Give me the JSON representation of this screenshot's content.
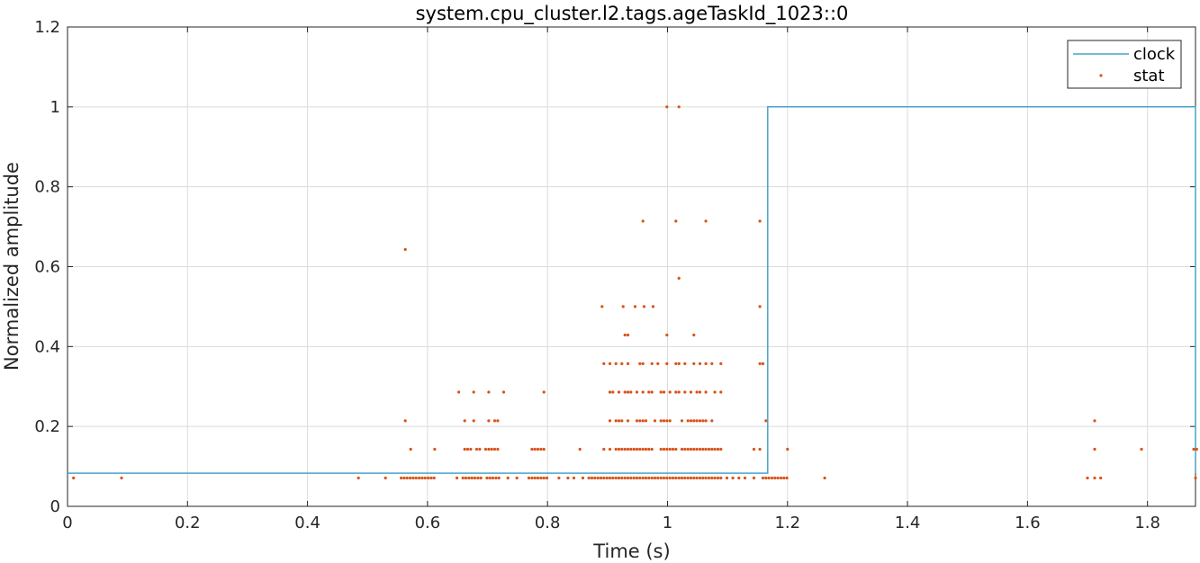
{
  "chart_data": {
    "type": "line",
    "title": "system.cpu_cluster.l2.tags.ageTaskId_1023::0",
    "xlabel": "Time (s)",
    "ylabel": "Normalized amplitude",
    "xlim": [
      0,
      1.88
    ],
    "ylim": [
      0,
      1.2
    ],
    "grid": true,
    "legend_position": "top-right",
    "x_tick_labels": [
      "0",
      "0.2",
      "0.4",
      "0.6",
      "0.8",
      "1",
      "1.2",
      "1.4",
      "1.6",
      "1.8"
    ],
    "y_tick_labels": [
      "0",
      "0.2",
      "0.4",
      "0.6",
      "0.8",
      "1",
      "1.2"
    ],
    "colors": {
      "clock": "#4aa3c8",
      "stat": "#d95319"
    },
    "series": [
      {
        "name": "clock",
        "style": "line",
        "x": [
          0,
          1.167,
          1.167,
          1.88,
          1.88
        ],
        "y": [
          0.083,
          0.083,
          1.0,
          1.0,
          0.083
        ]
      },
      {
        "name": "stat",
        "style": "points",
        "points": [
          [
            0.01,
            0.071
          ],
          [
            0.09,
            0.071
          ],
          [
            0.485,
            0.071
          ],
          [
            0.53,
            0.071
          ],
          [
            0.556,
            0.071
          ],
          [
            0.561,
            0.071
          ],
          [
            0.566,
            0.071
          ],
          [
            0.571,
            0.071
          ],
          [
            0.576,
            0.071
          ],
          [
            0.581,
            0.071
          ],
          [
            0.586,
            0.071
          ],
          [
            0.591,
            0.071
          ],
          [
            0.596,
            0.071
          ],
          [
            0.601,
            0.071
          ],
          [
            0.606,
            0.071
          ],
          [
            0.611,
            0.071
          ],
          [
            0.649,
            0.071
          ],
          [
            0.659,
            0.071
          ],
          [
            0.664,
            0.071
          ],
          [
            0.669,
            0.071
          ],
          [
            0.674,
            0.071
          ],
          [
            0.679,
            0.071
          ],
          [
            0.684,
            0.071
          ],
          [
            0.689,
            0.071
          ],
          [
            0.699,
            0.071
          ],
          [
            0.704,
            0.071
          ],
          [
            0.709,
            0.071
          ],
          [
            0.714,
            0.071
          ],
          [
            0.719,
            0.071
          ],
          [
            0.734,
            0.071
          ],
          [
            0.749,
            0.071
          ],
          [
            0.769,
            0.071
          ],
          [
            0.774,
            0.071
          ],
          [
            0.779,
            0.071
          ],
          [
            0.784,
            0.071
          ],
          [
            0.789,
            0.071
          ],
          [
            0.794,
            0.071
          ],
          [
            0.799,
            0.071
          ],
          [
            0.819,
            0.071
          ],
          [
            0.834,
            0.071
          ],
          [
            0.844,
            0.071
          ],
          [
            0.859,
            0.071
          ],
          [
            0.869,
            0.071
          ],
          [
            0.874,
            0.071
          ],
          [
            0.879,
            0.071
          ],
          [
            0.884,
            0.071
          ],
          [
            0.889,
            0.071
          ],
          [
            0.894,
            0.071
          ],
          [
            0.899,
            0.071
          ],
          [
            0.904,
            0.071
          ],
          [
            0.909,
            0.071
          ],
          [
            0.914,
            0.071
          ],
          [
            0.919,
            0.071
          ],
          [
            0.924,
            0.071
          ],
          [
            0.929,
            0.071
          ],
          [
            0.934,
            0.071
          ],
          [
            0.939,
            0.071
          ],
          [
            0.944,
            0.071
          ],
          [
            0.949,
            0.071
          ],
          [
            0.954,
            0.071
          ],
          [
            0.959,
            0.071
          ],
          [
            0.964,
            0.071
          ],
          [
            0.969,
            0.071
          ],
          [
            0.974,
            0.071
          ],
          [
            0.979,
            0.071
          ],
          [
            0.984,
            0.071
          ],
          [
            0.989,
            0.071
          ],
          [
            0.994,
            0.071
          ],
          [
            0.999,
            0.071
          ],
          [
            1.004,
            0.071
          ],
          [
            1.009,
            0.071
          ],
          [
            1.014,
            0.071
          ],
          [
            1.019,
            0.071
          ],
          [
            1.024,
            0.071
          ],
          [
            1.029,
            0.071
          ],
          [
            1.034,
            0.071
          ],
          [
            1.039,
            0.071
          ],
          [
            1.044,
            0.071
          ],
          [
            1.049,
            0.071
          ],
          [
            1.054,
            0.071
          ],
          [
            1.059,
            0.071
          ],
          [
            1.064,
            0.071
          ],
          [
            1.069,
            0.071
          ],
          [
            1.074,
            0.071
          ],
          [
            1.079,
            0.071
          ],
          [
            1.084,
            0.071
          ],
          [
            1.089,
            0.071
          ],
          [
            1.099,
            0.071
          ],
          [
            1.109,
            0.071
          ],
          [
            1.119,
            0.071
          ],
          [
            1.129,
            0.071
          ],
          [
            1.144,
            0.071
          ],
          [
            1.159,
            0.071
          ],
          [
            1.164,
            0.071
          ],
          [
            1.169,
            0.071
          ],
          [
            1.174,
            0.071
          ],
          [
            1.179,
            0.071
          ],
          [
            1.184,
            0.071
          ],
          [
            1.189,
            0.071
          ],
          [
            1.194,
            0.071
          ],
          [
            1.199,
            0.071
          ],
          [
            1.262,
            0.071
          ],
          [
            1.7,
            0.071
          ],
          [
            1.712,
            0.071
          ],
          [
            1.722,
            0.071
          ],
          [
            1.88,
            0.071
          ],
          [
            0.572,
            0.143
          ],
          [
            0.612,
            0.143
          ],
          [
            0.662,
            0.143
          ],
          [
            0.667,
            0.143
          ],
          [
            0.672,
            0.143
          ],
          [
            0.682,
            0.143
          ],
          [
            0.687,
            0.143
          ],
          [
            0.697,
            0.143
          ],
          [
            0.702,
            0.143
          ],
          [
            0.707,
            0.143
          ],
          [
            0.712,
            0.143
          ],
          [
            0.717,
            0.143
          ],
          [
            0.774,
            0.143
          ],
          [
            0.779,
            0.143
          ],
          [
            0.784,
            0.143
          ],
          [
            0.789,
            0.143
          ],
          [
            0.794,
            0.143
          ],
          [
            0.854,
            0.143
          ],
          [
            0.894,
            0.143
          ],
          [
            0.904,
            0.143
          ],
          [
            0.914,
            0.143
          ],
          [
            0.919,
            0.143
          ],
          [
            0.924,
            0.143
          ],
          [
            0.929,
            0.143
          ],
          [
            0.934,
            0.143
          ],
          [
            0.939,
            0.143
          ],
          [
            0.944,
            0.143
          ],
          [
            0.949,
            0.143
          ],
          [
            0.954,
            0.143
          ],
          [
            0.959,
            0.143
          ],
          [
            0.964,
            0.143
          ],
          [
            0.969,
            0.143
          ],
          [
            0.974,
            0.143
          ],
          [
            0.989,
            0.143
          ],
          [
            0.994,
            0.143
          ],
          [
            0.999,
            0.143
          ],
          [
            1.004,
            0.143
          ],
          [
            1.009,
            0.143
          ],
          [
            1.014,
            0.143
          ],
          [
            1.024,
            0.143
          ],
          [
            1.029,
            0.143
          ],
          [
            1.034,
            0.143
          ],
          [
            1.039,
            0.143
          ],
          [
            1.044,
            0.143
          ],
          [
            1.049,
            0.143
          ],
          [
            1.054,
            0.143
          ],
          [
            1.059,
            0.143
          ],
          [
            1.064,
            0.143
          ],
          [
            1.069,
            0.143
          ],
          [
            1.074,
            0.143
          ],
          [
            1.079,
            0.143
          ],
          [
            1.084,
            0.143
          ],
          [
            1.089,
            0.143
          ],
          [
            1.144,
            0.143
          ],
          [
            1.154,
            0.143
          ],
          [
            1.2,
            0.143
          ],
          [
            1.712,
            0.143
          ],
          [
            1.79,
            0.143
          ],
          [
            1.877,
            0.143
          ],
          [
            1.882,
            0.143
          ],
          [
            0.563,
            0.214
          ],
          [
            0.662,
            0.214
          ],
          [
            0.677,
            0.214
          ],
          [
            0.702,
            0.214
          ],
          [
            0.712,
            0.214
          ],
          [
            0.717,
            0.214
          ],
          [
            0.904,
            0.214
          ],
          [
            0.914,
            0.214
          ],
          [
            0.919,
            0.214
          ],
          [
            0.924,
            0.214
          ],
          [
            0.934,
            0.214
          ],
          [
            0.949,
            0.214
          ],
          [
            0.954,
            0.214
          ],
          [
            0.959,
            0.214
          ],
          [
            0.964,
            0.214
          ],
          [
            0.979,
            0.214
          ],
          [
            0.989,
            0.214
          ],
          [
            0.994,
            0.214
          ],
          [
            0.999,
            0.214
          ],
          [
            1.004,
            0.214
          ],
          [
            1.024,
            0.214
          ],
          [
            1.034,
            0.214
          ],
          [
            1.039,
            0.214
          ],
          [
            1.044,
            0.214
          ],
          [
            1.049,
            0.214
          ],
          [
            1.054,
            0.214
          ],
          [
            1.059,
            0.214
          ],
          [
            1.064,
            0.214
          ],
          [
            1.074,
            0.214
          ],
          [
            1.164,
            0.214
          ],
          [
            1.712,
            0.214
          ],
          [
            0.652,
            0.286
          ],
          [
            0.677,
            0.286
          ],
          [
            0.702,
            0.286
          ],
          [
            0.727,
            0.286
          ],
          [
            0.794,
            0.286
          ],
          [
            0.904,
            0.286
          ],
          [
            0.909,
            0.286
          ],
          [
            0.919,
            0.286
          ],
          [
            0.929,
            0.286
          ],
          [
            0.934,
            0.286
          ],
          [
            0.939,
            0.286
          ],
          [
            0.949,
            0.286
          ],
          [
            0.959,
            0.286
          ],
          [
            0.969,
            0.286
          ],
          [
            0.974,
            0.286
          ],
          [
            0.989,
            0.286
          ],
          [
            0.994,
            0.286
          ],
          [
            1.004,
            0.286
          ],
          [
            1.014,
            0.286
          ],
          [
            1.019,
            0.286
          ],
          [
            1.029,
            0.286
          ],
          [
            1.039,
            0.286
          ],
          [
            1.049,
            0.286
          ],
          [
            1.054,
            0.286
          ],
          [
            1.064,
            0.286
          ],
          [
            1.079,
            0.286
          ],
          [
            1.089,
            0.286
          ],
          [
            0.894,
            0.357
          ],
          [
            0.904,
            0.357
          ],
          [
            0.914,
            0.357
          ],
          [
            0.924,
            0.357
          ],
          [
            0.934,
            0.357
          ],
          [
            0.954,
            0.357
          ],
          [
            0.959,
            0.357
          ],
          [
            0.974,
            0.357
          ],
          [
            0.984,
            0.357
          ],
          [
            0.999,
            0.357
          ],
          [
            1.014,
            0.357
          ],
          [
            1.019,
            0.357
          ],
          [
            1.029,
            0.357
          ],
          [
            1.044,
            0.357
          ],
          [
            1.054,
            0.357
          ],
          [
            1.064,
            0.357
          ],
          [
            1.074,
            0.357
          ],
          [
            1.089,
            0.357
          ],
          [
            1.154,
            0.357
          ],
          [
            1.159,
            0.357
          ],
          [
            0.929,
            0.429
          ],
          [
            0.934,
            0.429
          ],
          [
            0.999,
            0.429
          ],
          [
            1.044,
            0.429
          ],
          [
            0.891,
            0.5
          ],
          [
            0.926,
            0.5
          ],
          [
            0.946,
            0.5
          ],
          [
            0.961,
            0.5
          ],
          [
            0.976,
            0.5
          ],
          [
            1.154,
            0.5
          ],
          [
            1.019,
            0.571
          ],
          [
            0.563,
            0.643
          ],
          [
            0.959,
            0.714
          ],
          [
            1.014,
            0.714
          ],
          [
            1.064,
            0.714
          ],
          [
            1.154,
            0.714
          ],
          [
            0.999,
            1.0
          ],
          [
            1.019,
            1.0
          ]
        ]
      }
    ]
  }
}
